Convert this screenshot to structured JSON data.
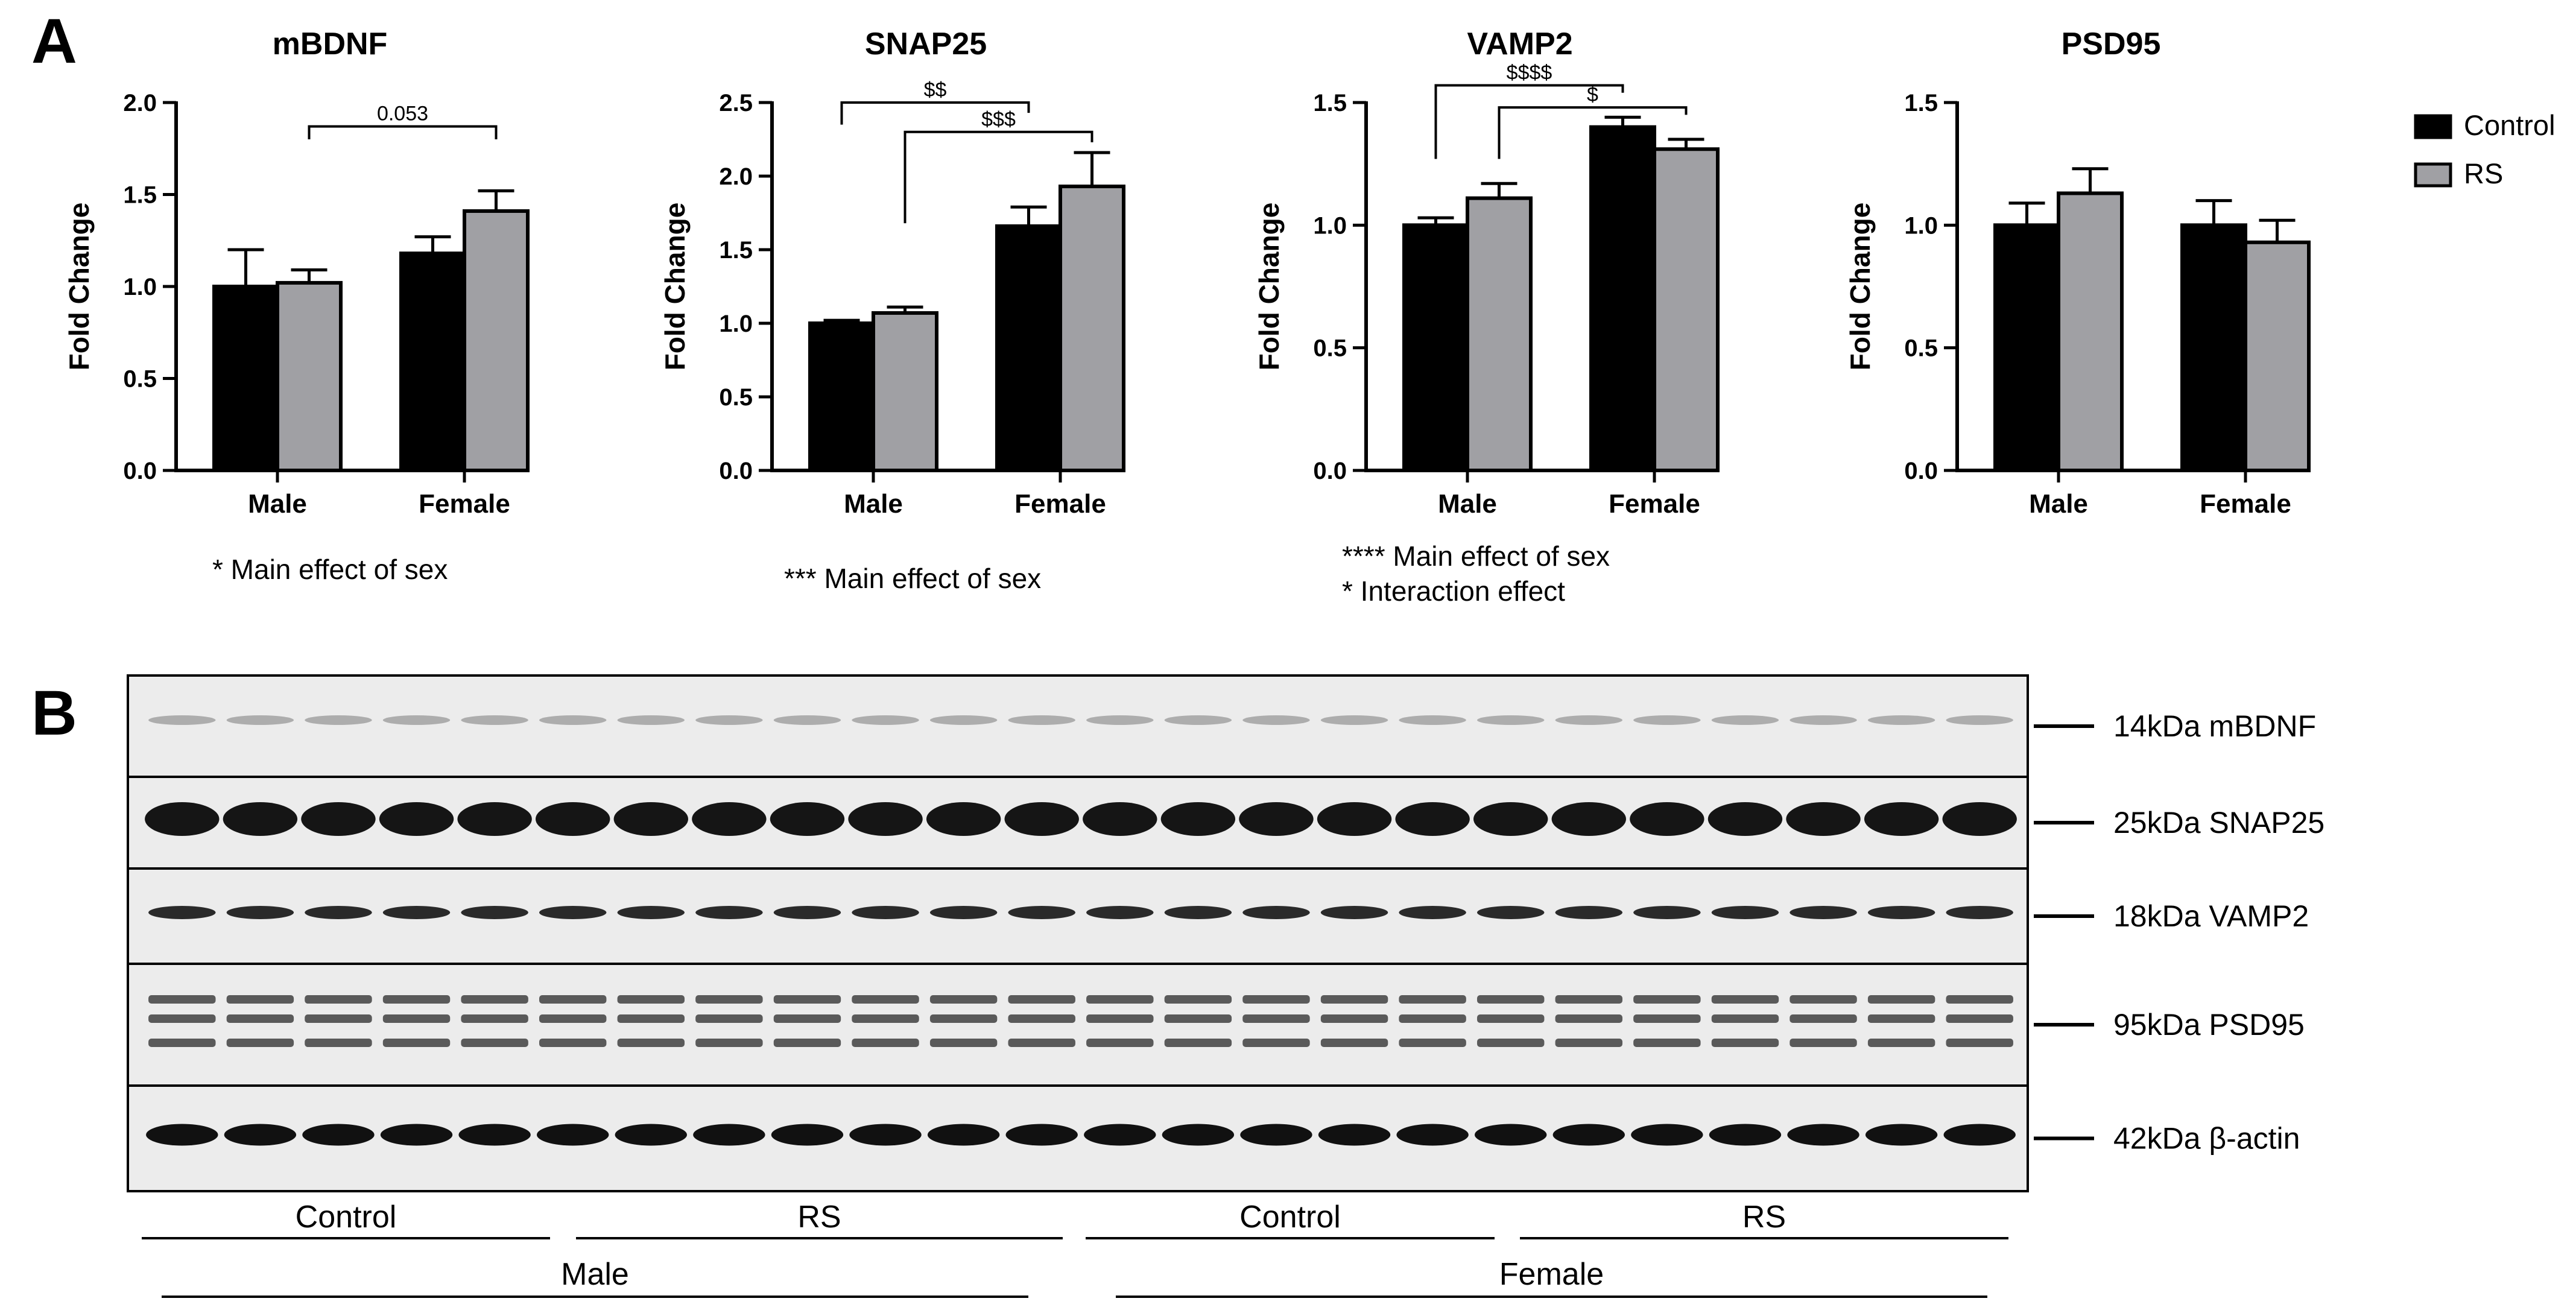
{
  "panel_labels": {
    "a": "A",
    "b": "B"
  },
  "legend": [
    {
      "name": "Control",
      "color": "#000000"
    },
    {
      "name": "RS",
      "color": "#a0a0a4"
    }
  ],
  "colors": {
    "control": "#000000",
    "rs": "#a0a0a4",
    "axis": "#000000"
  },
  "chart_data": [
    {
      "type": "bar",
      "title": "mBDNF",
      "ylabel": "Fold Change",
      "categories": [
        "Male",
        "Female"
      ],
      "ylim": [
        0,
        2.0
      ],
      "yticks": [
        0.0,
        0.5,
        1.0,
        1.5,
        2.0
      ],
      "tick_format": 1,
      "series": [
        {
          "name": "Control",
          "values": [
            1.0,
            1.18
          ],
          "errors": [
            0.2,
            0.09
          ]
        },
        {
          "name": "RS",
          "values": [
            1.02,
            1.41
          ],
          "errors": [
            0.07,
            0.11
          ]
        }
      ],
      "brackets": [
        {
          "label": "0.053",
          "from": [
            0,
            1
          ],
          "to": [
            1,
            1
          ],
          "level": 1.87
        }
      ],
      "notes": [
        "* Main effect of sex"
      ]
    },
    {
      "type": "bar",
      "title": "SNAP25",
      "ylabel": "Fold Change",
      "categories": [
        "Male",
        "Female"
      ],
      "ylim": [
        0,
        2.5
      ],
      "yticks": [
        0.0,
        0.5,
        1.0,
        1.5,
        2.0,
        2.5
      ],
      "tick_format": 1,
      "series": [
        {
          "name": "Control",
          "values": [
            1.0,
            1.66
          ],
          "errors": [
            0.02,
            0.13
          ]
        },
        {
          "name": "RS",
          "values": [
            1.07,
            1.93
          ],
          "errors": [
            0.04,
            0.23
          ]
        }
      ],
      "brackets": [
        {
          "label": "$$",
          "from": [
            0,
            0
          ],
          "to": [
            1,
            0
          ],
          "level": 2.5,
          "left_drop": 2.35
        },
        {
          "label": "$$$",
          "from": [
            0,
            1
          ],
          "to": [
            1,
            1
          ],
          "level": 2.3,
          "left_drop": 1.68
        }
      ],
      "notes": [
        "*** Main effect of sex"
      ]
    },
    {
      "type": "bar",
      "title": "VAMP2",
      "ylabel": "Fold Change",
      "categories": [
        "Male",
        "Female"
      ],
      "ylim": [
        0,
        1.5
      ],
      "yticks": [
        0.0,
        0.5,
        1.0,
        1.5
      ],
      "tick_format": 1,
      "series": [
        {
          "name": "Control",
          "values": [
            1.0,
            1.4
          ],
          "errors": [
            0.03,
            0.04
          ]
        },
        {
          "name": "RS",
          "values": [
            1.11,
            1.31
          ],
          "errors": [
            0.06,
            0.04
          ]
        }
      ],
      "brackets": [
        {
          "label": "$$$$",
          "from": [
            0,
            0
          ],
          "to": [
            1,
            0
          ],
          "level": 1.57,
          "left_drop": 1.27,
          "right_drop": 1.54
        },
        {
          "label": "$",
          "from": [
            0,
            1
          ],
          "to": [
            1,
            1
          ],
          "level": 1.48,
          "left_drop": 1.27,
          "right_drop": 1.45
        }
      ],
      "notes": [
        "****  Main effect of sex",
        "* Interaction effect"
      ]
    },
    {
      "type": "bar",
      "title": "PSD95",
      "ylabel": "Fold Change",
      "categories": [
        "Male",
        "Female"
      ],
      "ylim": [
        0,
        1.5
      ],
      "yticks": [
        0.0,
        0.5,
        1.0,
        1.5
      ],
      "tick_format": 1,
      "series": [
        {
          "name": "Control",
          "values": [
            1.0,
            1.0
          ],
          "errors": [
            0.09,
            0.1
          ]
        },
        {
          "name": "RS",
          "values": [
            1.13,
            0.93
          ],
          "errors": [
            0.1,
            0.09
          ]
        }
      ],
      "brackets": [],
      "notes": []
    }
  ],
  "blots": [
    {
      "label": "14kDa mBDNF",
      "style": "faint"
    },
    {
      "label": "25kDa SNAP25",
      "style": "heavy"
    },
    {
      "label": "18kDa VAMP2",
      "style": "thin"
    },
    {
      "label": "95kDa PSD95",
      "style": "triple"
    },
    {
      "label": "42kDa β-actin",
      "style": "medium"
    }
  ],
  "lanes_per_group": 6,
  "groups": [
    {
      "label": "Control"
    },
    {
      "label": "RS"
    },
    {
      "label": "Control"
    },
    {
      "label": "RS"
    }
  ],
  "sexes": [
    {
      "label": "Male"
    },
    {
      "label": "Female"
    }
  ]
}
